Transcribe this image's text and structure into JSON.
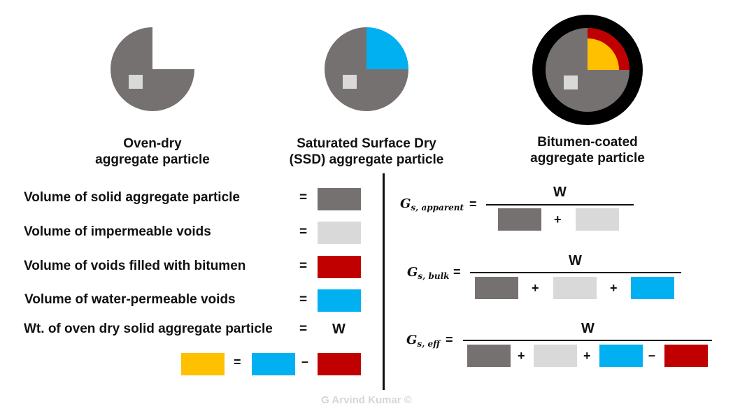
{
  "colors": {
    "solid": "#767171",
    "impermeable": "#d9d9d9",
    "bitumen": "#c00000",
    "water_permeable": "#00b0f0",
    "absorbed_bitumen": "#ffc000",
    "coating": "#000000"
  },
  "particles": [
    {
      "caption_line1": "Oven-dry",
      "caption_line2": "aggregate particle"
    },
    {
      "caption_line1": "Saturated Surface Dry",
      "caption_line2": "(SSD) aggregate particle"
    },
    {
      "caption_line1": "Bitumen-coated",
      "caption_line2": "aggregate particle"
    }
  ],
  "legend": {
    "rows": [
      {
        "label": "Volume of solid aggregate particle",
        "equals": "="
      },
      {
        "label": "Volume of impermeable voids",
        "equals": "="
      },
      {
        "label": "Volume of voids filled with bitumen",
        "equals": "="
      },
      {
        "label": "Volume of water-permeable voids",
        "equals": "="
      },
      {
        "label": "Wt. of oven dry solid aggregate particle",
        "equals": "=",
        "value": "W"
      }
    ],
    "relation": {
      "equals": "=",
      "minus": "–"
    }
  },
  "formulas": {
    "apparent": {
      "symbol": "G",
      "subscript": "s, apparent",
      "equals": "=",
      "numerator": "W",
      "ops": [
        "+"
      ]
    },
    "bulk": {
      "symbol": "G",
      "subscript": "s, bulk",
      "equals": "=",
      "numerator": "W",
      "ops": [
        "+",
        "+"
      ]
    },
    "eff": {
      "symbol": "G",
      "subscript": "s, eff",
      "equals": "=",
      "numerator": "W",
      "ops": [
        "+",
        "+",
        "–"
      ]
    }
  },
  "credit": "G Arvind Kumar ©"
}
